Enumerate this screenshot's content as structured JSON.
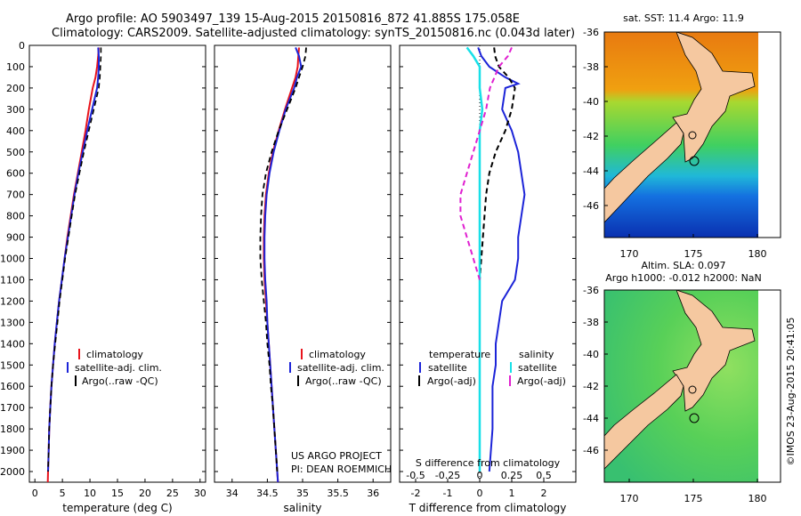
{
  "header": {
    "line1": "Argo profile: AO 5903497_139 15-Aug-2015 20150816_872 41.885S 175.058E",
    "line2": "Climatology: CARS2009. Satellite-adjusted climatology: synTS_20150816.nc (0.043d later)"
  },
  "depth_ticks": [
    "0",
    "100",
    "200",
    "300",
    "400",
    "500",
    "600",
    "700",
    "800",
    "900",
    "1000",
    "1100",
    "1200",
    "1300",
    "1400",
    "1500",
    "1600",
    "1700",
    "1800",
    "1900",
    "2000"
  ],
  "colors": {
    "red": "#e8141c",
    "blue": "#1c24d8",
    "cyan": "#18e0e8",
    "magenta": "#e020d0",
    "black": "#000000",
    "land": "#f5c8a0"
  },
  "panels": {
    "temperature": {
      "xlabel": "temperature (deg C)",
      "xticks": [
        "0",
        "5",
        "10",
        "15",
        "20",
        "25",
        "30"
      ],
      "legend": [
        "climatology",
        "satellite-adj. clim.",
        "Argo(..raw -QC)"
      ]
    },
    "salinity": {
      "xlabel": "salinity",
      "xticks": [
        "34",
        "34.5",
        "35",
        "35.5",
        "36"
      ],
      "legend": [
        "climatology",
        "satellite-adj. clim.",
        "Argo(..raw -QC)"
      ],
      "note1": "US ARGO PROJECT",
      "note2": "PI: DEAN ROEMMICH"
    },
    "difference": {
      "xlabel": "T difference from climatology",
      "xticks": [
        "-2",
        "-1",
        "0",
        "1",
        "2"
      ],
      "top_label": "S difference from climatology",
      "top_ticks": [
        "-0.5",
        "-0.25",
        "0",
        "0.25",
        "0.5"
      ],
      "legend_t_title": "temperature",
      "legend_s_title": "salinity",
      "legend_t": [
        "satellite",
        "Argo(-adj)"
      ],
      "legend_s": [
        "satellite",
        "Argo(-adj)"
      ]
    }
  },
  "maps": {
    "sst_title": "sat. SST: 11.4 Argo: 11.9",
    "sla_title1": "Altim. SLA: 0.097",
    "sla_title2": "Argo h1000: -0.012 h2000: NaN",
    "lat_ticks": [
      "-36",
      "-38",
      "-40",
      "-42",
      "-44",
      "-46"
    ],
    "lon_ticks": [
      "170",
      "175",
      "180"
    ]
  },
  "credit": "©IMOS 23-Aug-2015 20:41:05",
  "chart_data": [
    {
      "type": "line",
      "title": "",
      "xlabel": "temperature (deg C)",
      "ylabel": "",
      "xlim": [
        -1,
        31
      ],
      "ylim": [
        2050,
        0
      ],
      "series": [
        {
          "name": "climatology",
          "depth": [
            10,
            50,
            100,
            150,
            200,
            300,
            400,
            500,
            600,
            700,
            800,
            900,
            1000,
            1100,
            1200,
            1300,
            1400,
            1500,
            1600,
            1700,
            1800,
            1900,
            2000,
            2050
          ],
          "values": [
            11.6,
            11.5,
            11.3,
            11.0,
            10.5,
            9.8,
            9.2,
            8.5,
            7.8,
            7.1,
            6.5,
            5.9,
            5.4,
            4.9,
            4.4,
            4.0,
            3.6,
            3.3,
            3.0,
            2.8,
            2.6,
            2.5,
            2.4,
            2.35
          ]
        },
        {
          "name": "satellite-adj. clim.",
          "depth": [
            10,
            50,
            100,
            150,
            200,
            300,
            400,
            500,
            600,
            700,
            800,
            900,
            1000,
            1100,
            1200,
            1300,
            1400,
            1500,
            1600,
            1700,
            1800,
            1900,
            2000
          ],
          "values": [
            11.5,
            11.6,
            11.6,
            11.5,
            11.3,
            10.4,
            9.5,
            8.7,
            7.9,
            7.2,
            6.6,
            6.0,
            5.4,
            4.9,
            4.4,
            4.0,
            3.6,
            3.3,
            3.0,
            2.8,
            2.6,
            2.5,
            2.4
          ]
        },
        {
          "name": "Argo(..raw -QC)",
          "depth": [
            10,
            50,
            100,
            150,
            200,
            300,
            400,
            500,
            600,
            700,
            800,
            900,
            1000,
            1100,
            1200,
            1300,
            1400,
            1500,
            1600,
            1700,
            1800,
            1900,
            2000
          ],
          "values": [
            12.0,
            12.0,
            11.9,
            11.8,
            11.6,
            10.7,
            9.8,
            8.9,
            8.1,
            7.3,
            6.7,
            6.1,
            5.5,
            5.0,
            4.5,
            4.1,
            3.7,
            3.3,
            3.0,
            2.8,
            2.6,
            2.5,
            2.4
          ]
        }
      ]
    },
    {
      "type": "line",
      "title": "",
      "xlabel": "salinity",
      "ylabel": "",
      "xlim": [
        33.75,
        36.25
      ],
      "ylim": [
        2050,
        0
      ],
      "series": [
        {
          "name": "climatology",
          "depth": [
            10,
            50,
            100,
            150,
            200,
            300,
            400,
            500,
            600,
            700,
            800,
            900,
            1000,
            1100,
            1200,
            1300,
            1400,
            1500,
            1600,
            1700,
            1800,
            1900,
            2000,
            2050
          ],
          "values": [
            34.95,
            34.94,
            34.93,
            34.9,
            34.85,
            34.75,
            34.66,
            34.58,
            34.52,
            34.48,
            34.46,
            34.45,
            34.45,
            34.46,
            34.48,
            34.5,
            34.52,
            34.54,
            34.56,
            34.58,
            34.6,
            34.62,
            34.64,
            34.65
          ]
        },
        {
          "name": "satellite-adj. clim.",
          "depth": [
            10,
            50,
            100,
            150,
            200,
            300,
            400,
            500,
            600,
            700,
            800,
            900,
            1000,
            1100,
            1200,
            1300,
            1400,
            1500,
            1600,
            1700,
            1800,
            1900,
            2000,
            2050
          ],
          "values": [
            34.9,
            34.95,
            34.98,
            34.92,
            34.88,
            34.76,
            34.67,
            34.59,
            34.53,
            34.49,
            34.47,
            34.46,
            34.46,
            34.47,
            34.49,
            34.5,
            34.52,
            34.54,
            34.56,
            34.58,
            34.6,
            34.62,
            34.64,
            34.65
          ]
        },
        {
          "name": "Argo(..raw -QC)",
          "depth": [
            10,
            50,
            100,
            150,
            200,
            300,
            400,
            500,
            600,
            700,
            800,
            900,
            1000,
            1100,
            1200,
            1300,
            1400,
            1500,
            1600,
            1700,
            1800,
            1900,
            2000
          ],
          "values": [
            35.05,
            35.04,
            35.0,
            34.95,
            34.9,
            34.78,
            34.66,
            34.56,
            34.48,
            34.43,
            34.41,
            34.4,
            34.4,
            34.42,
            34.45,
            34.48,
            34.5,
            34.53,
            34.55,
            34.58,
            34.6,
            34.62,
            34.64
          ]
        }
      ]
    },
    {
      "type": "line",
      "title": "",
      "xlabel": "T difference from climatology",
      "ylabel": "",
      "xlim": [
        -2.5,
        3
      ],
      "ylim": [
        2050,
        0
      ],
      "series": [
        {
          "name": "temperature satellite",
          "depth": [
            10,
            50,
            100,
            150,
            180,
            200,
            300,
            400,
            500,
            600,
            700,
            800,
            900,
            1000,
            1100,
            1200,
            1300,
            1400,
            1500,
            1600,
            1700,
            1800,
            1900,
            2000
          ],
          "values": [
            -0.05,
            0.05,
            0.3,
            0.8,
            1.2,
            0.8,
            0.7,
            1.0,
            1.2,
            1.3,
            1.4,
            1.3,
            1.2,
            1.2,
            1.1,
            0.7,
            0.6,
            0.5,
            0.5,
            0.4,
            0.4,
            0.4,
            0.35,
            0.3
          ]
        },
        {
          "name": "temperature Argo(-adj)",
          "depth": [
            10,
            50,
            100,
            150,
            200,
            300,
            400,
            500,
            600,
            700,
            800,
            900,
            1000,
            1100,
            1200,
            1300,
            1400,
            1500,
            1600
          ],
          "values": [
            0.45,
            0.48,
            0.6,
            0.9,
            1.1,
            1.0,
            0.8,
            0.5,
            0.3,
            0.2,
            0.15,
            0.1,
            0.05,
            0.0,
            0.0,
            0.0,
            0.0,
            0.0,
            0.0
          ]
        },
        {
          "name": "salinity satellite",
          "depth": [
            10,
            50,
            100,
            200,
            300,
            400,
            500,
            600,
            700,
            800,
            900,
            1000,
            1200,
            1400,
            1600,
            1800,
            2000
          ],
          "values": [
            -0.1,
            -0.05,
            0.0,
            0.0,
            0.02,
            0.0,
            0.0,
            0.0,
            0.0,
            0.0,
            0.0,
            0.0,
            0.0,
            0.0,
            0.0,
            0.0,
            0.0
          ]
        },
        {
          "name": "salinity Argo(-adj)",
          "depth": [
            10,
            50,
            100,
            200,
            300,
            400,
            500,
            600,
            700,
            800,
            900,
            1000,
            1100
          ],
          "values": [
            0.25,
            0.22,
            0.15,
            0.08,
            0.05,
            0.0,
            -0.05,
            -0.1,
            -0.15,
            -0.15,
            -0.1,
            -0.05,
            0.0
          ]
        }
      ]
    }
  ]
}
